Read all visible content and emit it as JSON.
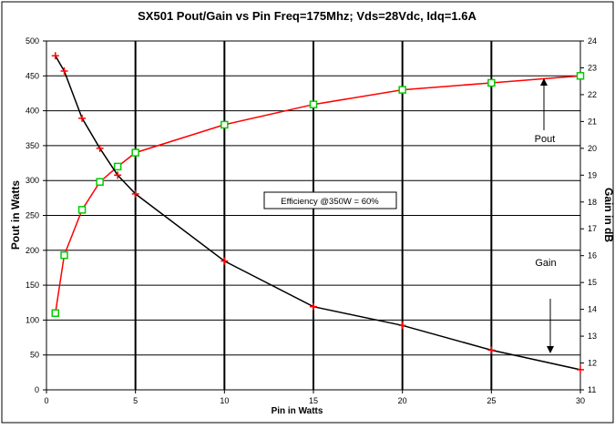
{
  "chart_data": {
    "type": "line",
    "title": "SX501 Pout/Gain vs Pin Freq=175Mhz; Vds=28Vdc, Idq=1.6A",
    "xlabel": "Pin in Watts",
    "ylabel": "Pout in Watts",
    "y2label": "Gain in dB",
    "xlim": [
      0,
      30
    ],
    "ylim": [
      0,
      500
    ],
    "y2lim": [
      11,
      24
    ],
    "xticks": [
      "0",
      "5",
      "10",
      "15",
      "20",
      "25",
      "30"
    ],
    "yticks": [
      "0",
      "50",
      "100",
      "150",
      "200",
      "250",
      "300",
      "350",
      "400",
      "450",
      "500"
    ],
    "y2ticks": [
      "11",
      "12",
      "13",
      "14",
      "15",
      "16",
      "17",
      "18",
      "19",
      "20",
      "21",
      "22",
      "23",
      "24"
    ],
    "grid": true,
    "series": [
      {
        "name": "Pout",
        "axis": "left",
        "color": "#ff0000",
        "marker": "square",
        "marker_color": "#00cc00",
        "points": [
          [
            0.5,
            110
          ],
          [
            1,
            193
          ],
          [
            2,
            258
          ],
          [
            3,
            298
          ],
          [
            4,
            320
          ],
          [
            5,
            340
          ],
          [
            10,
            380
          ],
          [
            15,
            409
          ],
          [
            20,
            430
          ],
          [
            25,
            440
          ],
          [
            30,
            450
          ]
        ]
      },
      {
        "name": "Gain",
        "axis": "right",
        "color": "#000000",
        "marker": "plus",
        "marker_color": "#ff0000",
        "points": [
          [
            0.5,
            23.45
          ],
          [
            1,
            22.88
          ],
          [
            2,
            21.12
          ],
          [
            3,
            20.0
          ],
          [
            4,
            19.0
          ],
          [
            5,
            18.3
          ],
          [
            10,
            15.8
          ],
          [
            15,
            14.1
          ],
          [
            20,
            13.4
          ],
          [
            25,
            12.48
          ],
          [
            30,
            11.75
          ]
        ]
      }
    ],
    "annotations": [
      {
        "text": "Pout",
        "kind": "series-label"
      },
      {
        "text": "Gain",
        "kind": "series-label"
      },
      {
        "text": "Efficiency @350W = 60%",
        "kind": "boxed-note"
      }
    ]
  }
}
